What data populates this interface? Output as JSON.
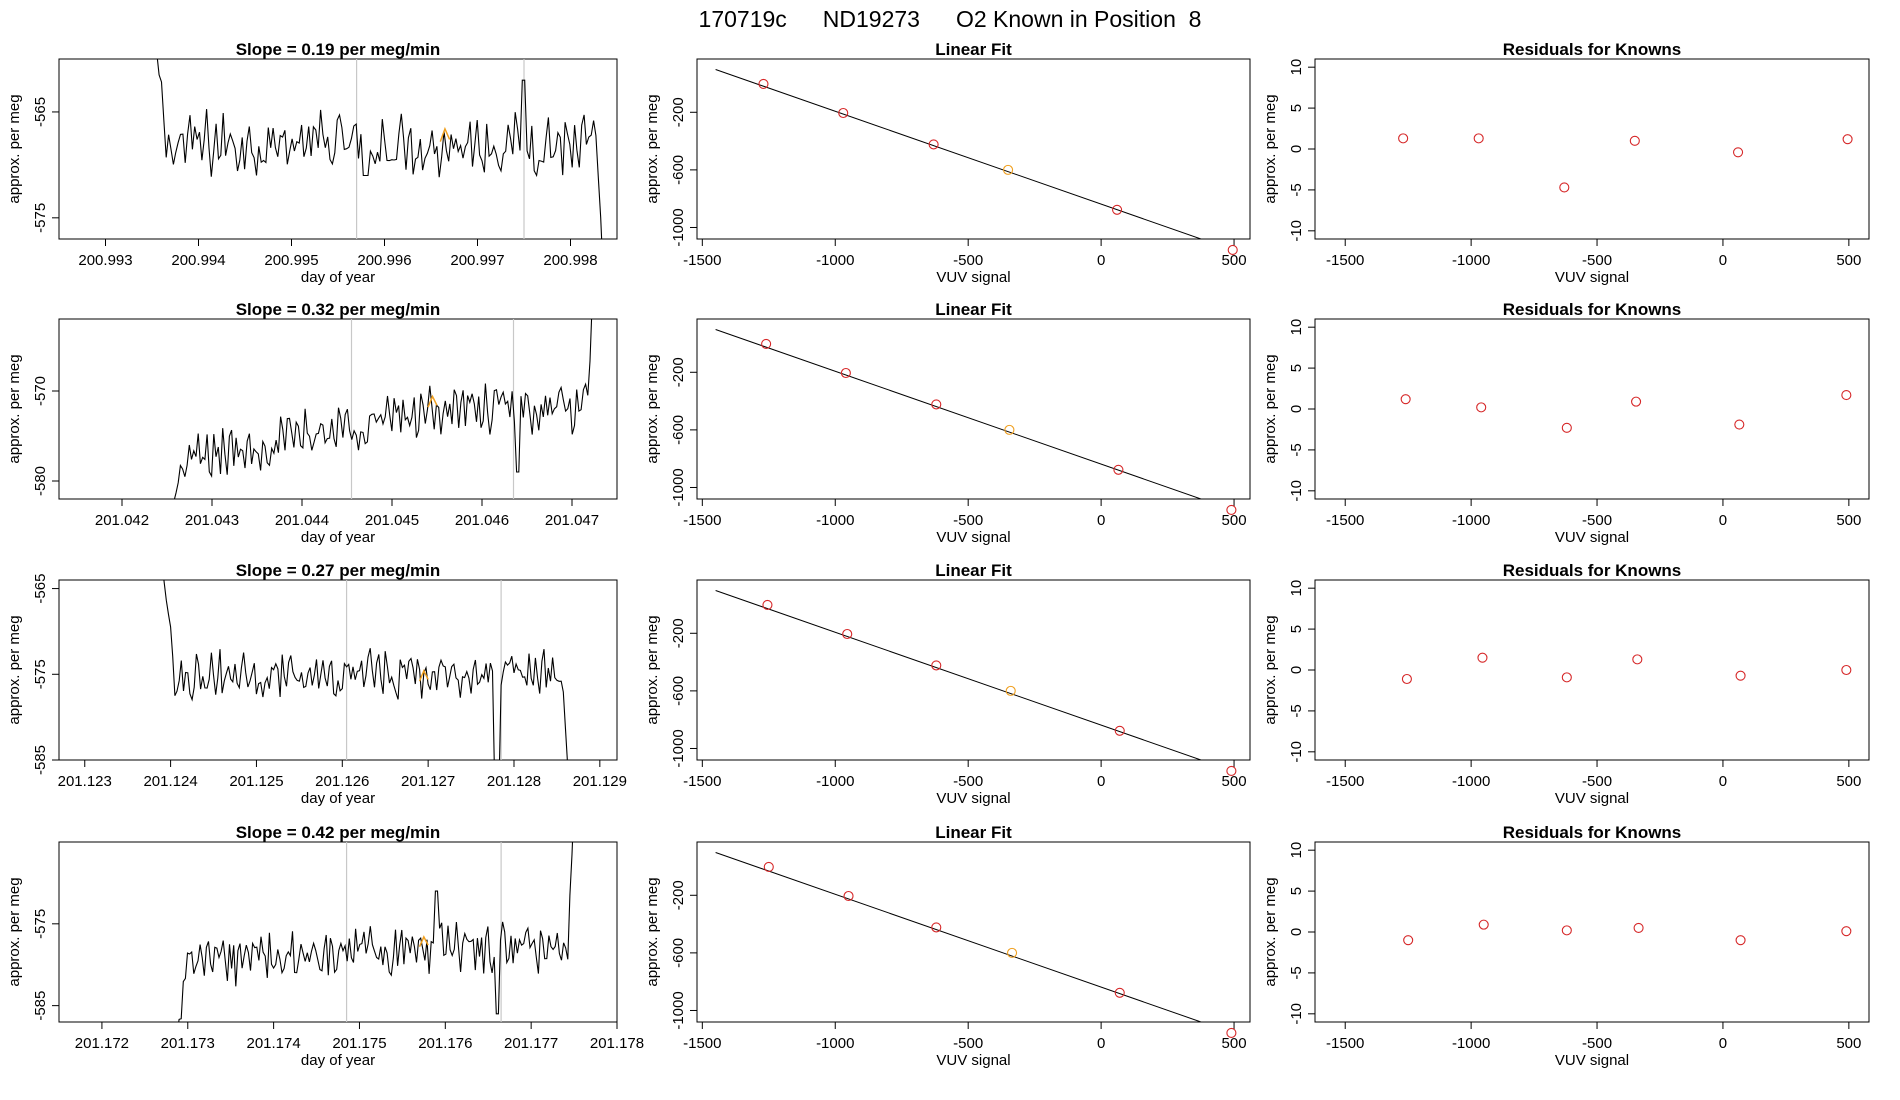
{
  "header": {
    "run_id": "170719c",
    "tank_id": "ND19273",
    "description": "O2 Known in Position  8"
  },
  "colors": {
    "line": "#000000",
    "point": "#d62728",
    "highlight": "#f0a020",
    "vline": "#c8c8c8"
  },
  "chart_data": [
    {
      "type": "line",
      "row": 0,
      "col": 0,
      "title": "Slope =  0.19  per meg/min",
      "xlabel": "day of year",
      "ylabel": "approx. per meg",
      "xlim": [
        200.9925,
        200.9985
      ],
      "ylim": [
        -577,
        -560
      ],
      "xticks": [
        200.993,
        200.994,
        200.995,
        200.996,
        200.997,
        200.998
      ],
      "yticks": [
        -565,
        -575
      ],
      "vlines": [
        200.9957,
        200.9975
      ],
      "x_start": 200.9935,
      "x_end": 200.99835,
      "base": -568,
      "noise": 2.5,
      "start_from": -555,
      "end_to": -580,
      "spikes": [
        [
          200.9975,
          -562
        ],
        [
          200.9958,
          -571
        ]
      ],
      "highlight": [
        200.99665,
        -567
      ]
    },
    {
      "type": "scatter",
      "row": 0,
      "col": 1,
      "title": "Linear Fit",
      "xlabel": "VUV signal",
      "ylabel": "approx. per meg",
      "xlim": [
        -1520,
        560
      ],
      "ylim": [
        -1080,
        170
      ],
      "xticks": [
        -1500,
        -1000,
        -500,
        0,
        500
      ],
      "yticks": [
        -200,
        -600,
        -1000
      ],
      "x": [
        -1270,
        -970,
        -630,
        -350,
        60,
        495
      ],
      "y": [
        -3,
        -205,
        -423,
        -600,
        -877,
        -1156
      ],
      "highlight_index": 3,
      "fit_line": {
        "x": [
          -1450,
          500
        ],
        "y": [
          97,
          -1160
        ]
      }
    },
    {
      "type": "scatter",
      "row": 0,
      "col": 2,
      "title": "Residuals for Knowns",
      "xlabel": "VUV signal",
      "ylabel": "approx. per meg",
      "xlim": [
        -1620,
        580
      ],
      "ylim": [
        -11,
        11
      ],
      "xticks": [
        -1500,
        -1000,
        -500,
        0,
        500
      ],
      "yticks": [
        10,
        5,
        0,
        -5,
        -10
      ],
      "x": [
        -1270,
        -970,
        -630,
        -350,
        60,
        495
      ],
      "y": [
        1.3,
        1.3,
        -4.7,
        1.0,
        -0.4,
        1.2
      ]
    },
    {
      "type": "line",
      "row": 1,
      "col": 0,
      "title": "Slope =  0.32  per meg/min",
      "xlabel": "day of year",
      "ylabel": "approx. per meg",
      "xlim": [
        201.0413,
        201.0475
      ],
      "ylim": [
        -582,
        -562
      ],
      "xticks": [
        201.042,
        201.043,
        201.044,
        201.045,
        201.046,
        201.047
      ],
      "yticks": [
        -570,
        -580
      ],
      "vlines": [
        201.04455,
        201.04635
      ],
      "x_start": 201.04255,
      "x_end": 201.04725,
      "base": -572,
      "noise": 2.2,
      "start_from": -583,
      "end_to": -555,
      "trend_start": -578,
      "spikes": [
        [
          201.0464,
          -579
        ]
      ],
      "highlight": [
        201.04545,
        -571
      ]
    },
    {
      "type": "scatter",
      "row": 1,
      "col": 1,
      "title": "Linear Fit",
      "xlabel": "VUV signal",
      "ylabel": "approx. per meg",
      "xlim": [
        -1520,
        560
      ],
      "ylim": [
        -1080,
        170
      ],
      "xticks": [
        -1500,
        -1000,
        -500,
        0,
        500
      ],
      "yticks": [
        -200,
        -600,
        -1000
      ],
      "x": [
        -1260,
        -960,
        -620,
        -345,
        65,
        490
      ],
      "y": [
        -3,
        -205,
        -423,
        -600,
        -877,
        -1156
      ],
      "highlight_index": 3,
      "fit_line": {
        "x": [
          -1450,
          500
        ],
        "y": [
          97,
          -1160
        ]
      }
    },
    {
      "type": "scatter",
      "row": 1,
      "col": 2,
      "title": "Residuals for Knowns",
      "xlabel": "VUV signal",
      "ylabel": "approx. per meg",
      "xlim": [
        -1620,
        580
      ],
      "ylim": [
        -11,
        11
      ],
      "xticks": [
        -1500,
        -1000,
        -500,
        0,
        500
      ],
      "yticks": [
        10,
        5,
        0,
        -5,
        -10
      ],
      "x": [
        -1260,
        -960,
        -620,
        -345,
        65,
        490
      ],
      "y": [
        1.2,
        0.2,
        -2.3,
        0.9,
        -1.9,
        1.7
      ]
    },
    {
      "type": "line",
      "row": 2,
      "col": 0,
      "title": "Slope =  0.27  per meg/min",
      "xlabel": "day of year",
      "ylabel": "approx. per meg",
      "xlim": [
        201.1227,
        201.1292
      ],
      "ylim": [
        -585,
        -564
      ],
      "xticks": [
        201.123,
        201.124,
        201.125,
        201.126,
        201.127,
        201.128,
        201.129
      ],
      "yticks": [
        -565,
        -575,
        -585
      ],
      "vlines": [
        201.12605,
        201.12785
      ],
      "x_start": 201.1239,
      "x_end": 201.12865,
      "base": -575,
      "noise": 2.2,
      "start_from": -562,
      "end_to": -590,
      "spikes": [
        [
          201.1278,
          -588
        ]
      ],
      "highlight": [
        201.12695,
        -575
      ]
    },
    {
      "type": "scatter",
      "row": 2,
      "col": 1,
      "title": "Linear Fit",
      "xlabel": "VUV signal",
      "ylabel": "approx. per meg",
      "xlim": [
        -1520,
        560
      ],
      "ylim": [
        -1080,
        170
      ],
      "xticks": [
        -1500,
        -1000,
        -500,
        0,
        500
      ],
      "yticks": [
        -200,
        -600,
        -1000
      ],
      "x": [
        -1255,
        -955,
        -620,
        -340,
        70,
        490
      ],
      "y": [
        -3,
        -205,
        -423,
        -600,
        -877,
        -1156
      ],
      "highlight_index": 3,
      "fit_line": {
        "x": [
          -1450,
          500
        ],
        "y": [
          97,
          -1160
        ]
      }
    },
    {
      "type": "scatter",
      "row": 2,
      "col": 2,
      "title": "Residuals for Knowns",
      "xlabel": "VUV signal",
      "ylabel": "approx. per meg",
      "xlim": [
        -1620,
        580
      ],
      "ylim": [
        -11,
        11
      ],
      "xticks": [
        -1500,
        -1000,
        -500,
        0,
        500
      ],
      "yticks": [
        10,
        5,
        0,
        -5,
        -10
      ],
      "x": [
        -1255,
        -955,
        -620,
        -340,
        70,
        490
      ],
      "y": [
        -1.1,
        1.5,
        -0.9,
        1.3,
        -0.7,
        0.0
      ]
    },
    {
      "type": "line",
      "row": 3,
      "col": 0,
      "title": "Slope =  0.42  per meg/min",
      "xlabel": "day of year",
      "ylabel": "approx. per meg",
      "xlim": [
        201.1715,
        201.178
      ],
      "ylim": [
        -587,
        -565
      ],
      "xticks": [
        201.172,
        201.173,
        201.174,
        201.175,
        201.176,
        201.177,
        201.178
      ],
      "yticks": [
        -575,
        -585
      ],
      "vlines": [
        201.17485,
        201.17665
      ],
      "x_start": 201.17285,
      "x_end": 201.1775,
      "base": -578,
      "noise": 2.4,
      "start_from": -590,
      "end_to": -560,
      "trend_start": -580,
      "spikes": [
        [
          201.1766,
          -586
        ],
        [
          201.1759,
          -571
        ]
      ],
      "highlight": [
        201.17575,
        -577
      ]
    },
    {
      "type": "scatter",
      "row": 3,
      "col": 1,
      "title": "Linear Fit",
      "xlabel": "VUV signal",
      "ylabel": "approx. per meg",
      "xlim": [
        -1520,
        560
      ],
      "ylim": [
        -1080,
        170
      ],
      "xticks": [
        -1500,
        -1000,
        -500,
        0,
        500
      ],
      "yticks": [
        -200,
        -600,
        -1000
      ],
      "x": [
        -1250,
        -950,
        -620,
        -335,
        70,
        490
      ],
      "y": [
        -3,
        -205,
        -423,
        -600,
        -877,
        -1156
      ],
      "highlight_index": 3,
      "fit_line": {
        "x": [
          -1450,
          500
        ],
        "y": [
          97,
          -1160
        ]
      }
    },
    {
      "type": "scatter",
      "row": 3,
      "col": 2,
      "title": "Residuals for Knowns",
      "xlabel": "VUV signal",
      "ylabel": "approx. per meg",
      "xlim": [
        -1620,
        580
      ],
      "ylim": [
        -11,
        11
      ],
      "xticks": [
        -1500,
        -1000,
        -500,
        0,
        500
      ],
      "yticks": [
        10,
        5,
        0,
        -5,
        -10
      ],
      "x": [
        -1250,
        -950,
        -620,
        -335,
        70,
        490
      ],
      "y": [
        -1.0,
        0.9,
        0.2,
        0.5,
        -1.0,
        0.1
      ]
    }
  ]
}
